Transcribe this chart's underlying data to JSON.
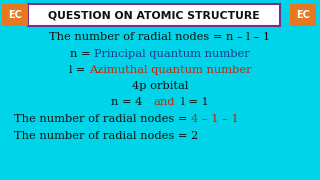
{
  "bg_color": "#fdf5e0",
  "cyan_border": "#00d4e8",
  "title_box_color": "#ffffff",
  "title_border_color": "#7b2d8b",
  "title_text": "QUESTION ON ATOMIC STRUCTURE",
  "title_color": "#111111",
  "ec_box_color": "#e87722",
  "ec_text": "EC",
  "black": "#111111",
  "red": "#cc2200",
  "blue": "#1a3a8a",
  "font_size": 8.2,
  "title_font_size": 7.8,
  "line1_black": "The number of radial nodes = n – l – 1",
  "line2_black": "n = ",
  "line2_blue": "Principal quantum number",
  "line3_black": "l",
  "line3_black2": " = ",
  "line3_red": "Azimuthal quantum number",
  "line4": "4p orbital",
  "line5_black1": "n = 4   ",
  "line5_red": "and",
  "line5_black2": "  l = 1",
  "line6_black": "The number of radial nodes = ",
  "line6_red": "4 – 1 – 1",
  "line7": "The number of radial nodes = 2"
}
